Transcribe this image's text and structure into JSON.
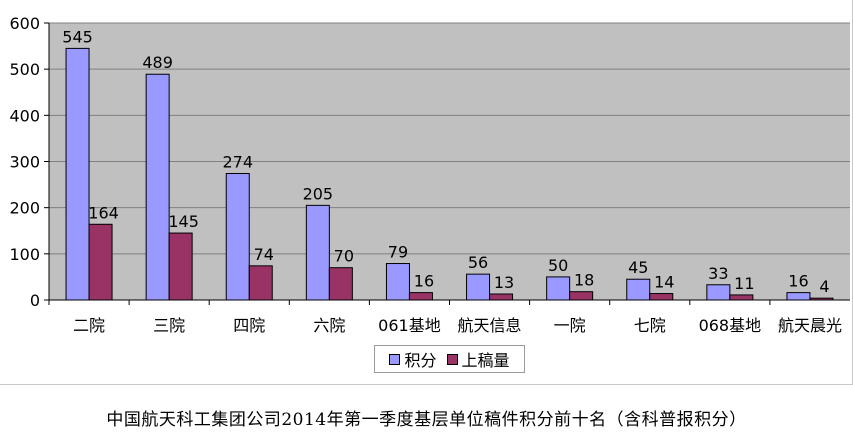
{
  "chart_data": {
    "type": "bar",
    "categories": [
      "二院",
      "三院",
      "四院",
      "六院",
      "061基地",
      "航天信息",
      "一院",
      "七院",
      "068基地",
      "航天晨光"
    ],
    "series": [
      {
        "name": "积分",
        "values": [
          545,
          489,
          274,
          205,
          79,
          56,
          50,
          45,
          33,
          16
        ],
        "color": "#9999ff"
      },
      {
        "name": "上稿量",
        "values": [
          164,
          145,
          74,
          70,
          16,
          13,
          18,
          14,
          11,
          4
        ],
        "color": "#993366"
      }
    ],
    "ylim": [
      0,
      600
    ],
    "yticks": [
      0,
      100,
      200,
      300,
      400,
      500,
      600
    ],
    "grid": true,
    "legend_position": "bottom-center",
    "plot_background": "#c0c0c0",
    "title": "中国航天科工集团公司2014年第一季度基层单位稿件积分前十名（含科普报积分）"
  }
}
